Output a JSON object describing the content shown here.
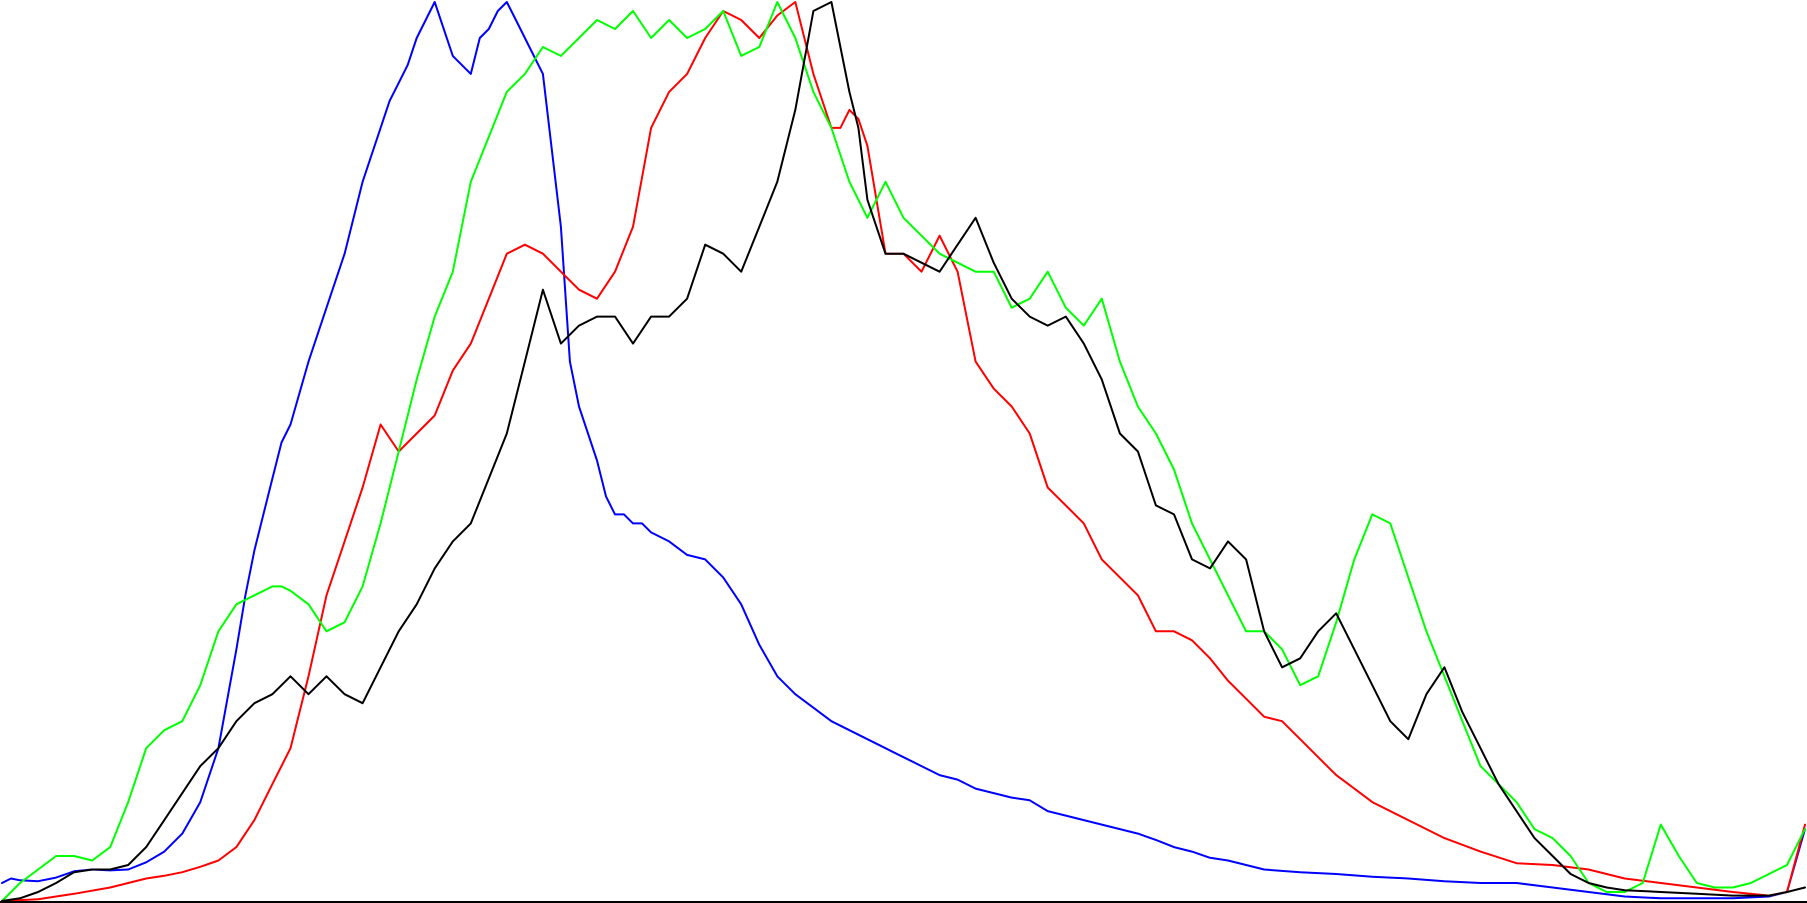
{
  "chart_data": {
    "type": "line",
    "title": "",
    "xlabel": "",
    "ylabel": "",
    "grid": false,
    "legend": "none",
    "xlim": [
      0,
      1
    ],
    "ylim": [
      0,
      1
    ],
    "series": [
      {
        "color": "#0000ff",
        "x": [
          0,
          0.005,
          0.01,
          0.02,
          0.03,
          0.04,
          0.05,
          0.06,
          0.07,
          0.08,
          0.09,
          0.1,
          0.11,
          0.12,
          0.13,
          0.135,
          0.14,
          0.145,
          0.15,
          0.155,
          0.16,
          0.17,
          0.18,
          0.19,
          0.2,
          0.205,
          0.21,
          0.215,
          0.22,
          0.225,
          0.23,
          0.24,
          0.25,
          0.26,
          0.265,
          0.27,
          0.275,
          0.28,
          0.285,
          0.29,
          0.3,
          0.31,
          0.315,
          0.32,
          0.325,
          0.33,
          0.335,
          0.34,
          0.345,
          0.35,
          0.355,
          0.36,
          0.37,
          0.38,
          0.39,
          0.4,
          0.41,
          0.42,
          0.43,
          0.44,
          0.45,
          0.46,
          0.47,
          0.48,
          0.49,
          0.5,
          0.51,
          0.52,
          0.53,
          0.54,
          0.55,
          0.56,
          0.57,
          0.58,
          0.59,
          0.6,
          0.61,
          0.62,
          0.63,
          0.64,
          0.65,
          0.66,
          0.67,
          0.68,
          0.69,
          0.7,
          0.72,
          0.74,
          0.76,
          0.78,
          0.8,
          0.82,
          0.84,
          0.86,
          0.88,
          0.9,
          0.92,
          0.94,
          0.96,
          0.98,
          0.99,
          1
        ],
        "y": [
          0.02,
          0.025,
          0.023,
          0.022,
          0.026,
          0.033,
          0.035,
          0.034,
          0.035,
          0.043,
          0.055,
          0.075,
          0.11,
          0.17,
          0.28,
          0.34,
          0.39,
          0.43,
          0.47,
          0.51,
          0.53,
          0.6,
          0.66,
          0.72,
          0.8,
          0.83,
          0.86,
          0.89,
          0.91,
          0.93,
          0.96,
          1.0,
          0.94,
          0.92,
          0.96,
          0.97,
          0.99,
          1.0,
          0.98,
          0.96,
          0.92,
          0.75,
          0.6,
          0.55,
          0.52,
          0.49,
          0.45,
          0.43,
          0.43,
          0.42,
          0.42,
          0.41,
          0.4,
          0.385,
          0.38,
          0.36,
          0.33,
          0.285,
          0.25,
          0.23,
          0.215,
          0.2,
          0.19,
          0.18,
          0.17,
          0.16,
          0.15,
          0.14,
          0.135,
          0.125,
          0.12,
          0.115,
          0.112,
          0.1,
          0.095,
          0.09,
          0.085,
          0.08,
          0.075,
          0.068,
          0.06,
          0.055,
          0.048,
          0.045,
          0.04,
          0.035,
          0.032,
          0.03,
          0.027,
          0.025,
          0.022,
          0.02,
          0.02,
          0.015,
          0.01,
          0.005,
          0.003,
          0.003,
          0.003,
          0.005,
          0.01,
          0.08
        ]
      },
      {
        "color": "#ff0000",
        "x": [
          0,
          0.02,
          0.04,
          0.06,
          0.08,
          0.09,
          0.1,
          0.11,
          0.12,
          0.13,
          0.14,
          0.15,
          0.16,
          0.17,
          0.18,
          0.19,
          0.2,
          0.21,
          0.22,
          0.23,
          0.24,
          0.25,
          0.26,
          0.27,
          0.28,
          0.29,
          0.3,
          0.31,
          0.32,
          0.33,
          0.34,
          0.35,
          0.36,
          0.37,
          0.38,
          0.39,
          0.4,
          0.41,
          0.42,
          0.43,
          0.44,
          0.45,
          0.46,
          0.465,
          0.47,
          0.475,
          0.48,
          0.49,
          0.5,
          0.51,
          0.52,
          0.53,
          0.54,
          0.55,
          0.56,
          0.57,
          0.58,
          0.59,
          0.6,
          0.61,
          0.62,
          0.63,
          0.64,
          0.65,
          0.66,
          0.67,
          0.68,
          0.69,
          0.7,
          0.71,
          0.72,
          0.73,
          0.74,
          0.75,
          0.76,
          0.78,
          0.8,
          0.82,
          0.84,
          0.86,
          0.88,
          0.9,
          0.92,
          0.94,
          0.96,
          0.98,
          0.99,
          1
        ],
        "y": [
          0.0,
          0.002,
          0.008,
          0.015,
          0.025,
          0.028,
          0.032,
          0.038,
          0.045,
          0.06,
          0.09,
          0.13,
          0.17,
          0.25,
          0.34,
          0.4,
          0.46,
          0.53,
          0.5,
          0.52,
          0.54,
          0.59,
          0.62,
          0.67,
          0.72,
          0.73,
          0.72,
          0.7,
          0.68,
          0.67,
          0.7,
          0.75,
          0.86,
          0.9,
          0.92,
          0.96,
          0.99,
          0.98,
          0.96,
          0.985,
          1.0,
          0.92,
          0.86,
          0.86,
          0.88,
          0.87,
          0.84,
          0.72,
          0.72,
          0.7,
          0.74,
          0.7,
          0.6,
          0.57,
          0.55,
          0.52,
          0.46,
          0.44,
          0.42,
          0.38,
          0.36,
          0.34,
          0.3,
          0.3,
          0.29,
          0.27,
          0.245,
          0.225,
          0.205,
          0.2,
          0.18,
          0.16,
          0.14,
          0.125,
          0.11,
          0.09,
          0.07,
          0.055,
          0.042,
          0.04,
          0.035,
          0.025,
          0.02,
          0.015,
          0.01,
          0.006,
          0.01,
          0.085
        ]
      },
      {
        "color": "#00ff00",
        "x": [
          0,
          0.01,
          0.02,
          0.03,
          0.04,
          0.05,
          0.06,
          0.07,
          0.08,
          0.09,
          0.1,
          0.11,
          0.12,
          0.13,
          0.14,
          0.15,
          0.155,
          0.16,
          0.17,
          0.18,
          0.19,
          0.2,
          0.21,
          0.22,
          0.23,
          0.24,
          0.25,
          0.26,
          0.27,
          0.28,
          0.29,
          0.3,
          0.31,
          0.32,
          0.33,
          0.34,
          0.35,
          0.36,
          0.37,
          0.38,
          0.39,
          0.4,
          0.41,
          0.42,
          0.43,
          0.44,
          0.45,
          0.46,
          0.47,
          0.48,
          0.49,
          0.5,
          0.51,
          0.52,
          0.53,
          0.54,
          0.55,
          0.56,
          0.57,
          0.58,
          0.59,
          0.6,
          0.61,
          0.62,
          0.63,
          0.64,
          0.65,
          0.66,
          0.67,
          0.68,
          0.69,
          0.7,
          0.71,
          0.72,
          0.73,
          0.74,
          0.75,
          0.76,
          0.77,
          0.78,
          0.79,
          0.8,
          0.81,
          0.82,
          0.83,
          0.84,
          0.85,
          0.86,
          0.87,
          0.88,
          0.89,
          0.9,
          0.91,
          0.92,
          0.93,
          0.94,
          0.95,
          0.96,
          0.97,
          0.98,
          0.99,
          1
        ],
        "y": [
          0.0,
          0.02,
          0.035,
          0.05,
          0.05,
          0.045,
          0.06,
          0.11,
          0.17,
          0.19,
          0.2,
          0.24,
          0.3,
          0.33,
          0.34,
          0.35,
          0.35,
          0.345,
          0.33,
          0.3,
          0.31,
          0.35,
          0.42,
          0.5,
          0.58,
          0.65,
          0.7,
          0.8,
          0.85,
          0.9,
          0.92,
          0.95,
          0.94,
          0.96,
          0.98,
          0.97,
          0.99,
          0.96,
          0.98,
          0.96,
          0.97,
          0.99,
          0.94,
          0.95,
          1.0,
          0.96,
          0.9,
          0.86,
          0.8,
          0.76,
          0.8,
          0.76,
          0.74,
          0.72,
          0.71,
          0.7,
          0.7,
          0.66,
          0.67,
          0.7,
          0.66,
          0.64,
          0.67,
          0.6,
          0.55,
          0.52,
          0.48,
          0.42,
          0.38,
          0.34,
          0.3,
          0.3,
          0.28,
          0.24,
          0.25,
          0.31,
          0.38,
          0.43,
          0.42,
          0.36,
          0.3,
          0.25,
          0.2,
          0.15,
          0.13,
          0.11,
          0.08,
          0.07,
          0.05,
          0.02,
          0.01,
          0.01,
          0.02,
          0.085,
          0.05,
          0.02,
          0.015,
          0.015,
          0.02,
          0.03,
          0.04,
          0.08
        ]
      },
      {
        "color": "#000000",
        "x": [
          0,
          0.01,
          0.02,
          0.03,
          0.04,
          0.05,
          0.06,
          0.07,
          0.08,
          0.09,
          0.1,
          0.11,
          0.12,
          0.13,
          0.14,
          0.15,
          0.16,
          0.17,
          0.18,
          0.19,
          0.2,
          0.21,
          0.22,
          0.23,
          0.24,
          0.25,
          0.26,
          0.27,
          0.28,
          0.29,
          0.3,
          0.31,
          0.32,
          0.33,
          0.34,
          0.35,
          0.36,
          0.37,
          0.38,
          0.39,
          0.4,
          0.41,
          0.42,
          0.43,
          0.44,
          0.45,
          0.46,
          0.465,
          0.47,
          0.475,
          0.48,
          0.49,
          0.5,
          0.51,
          0.52,
          0.53,
          0.54,
          0.55,
          0.56,
          0.57,
          0.58,
          0.59,
          0.6,
          0.61,
          0.62,
          0.63,
          0.64,
          0.65,
          0.66,
          0.67,
          0.68,
          0.69,
          0.7,
          0.71,
          0.72,
          0.73,
          0.74,
          0.75,
          0.76,
          0.77,
          0.78,
          0.79,
          0.8,
          0.81,
          0.82,
          0.83,
          0.84,
          0.85,
          0.86,
          0.87,
          0.88,
          0.89,
          0.9,
          0.92,
          0.94,
          0.96,
          0.98,
          0.99,
          1
        ],
        "y": [
          0.0,
          0.003,
          0.01,
          0.02,
          0.032,
          0.035,
          0.035,
          0.04,
          0.06,
          0.09,
          0.12,
          0.15,
          0.17,
          0.2,
          0.22,
          0.23,
          0.25,
          0.23,
          0.25,
          0.23,
          0.22,
          0.26,
          0.3,
          0.33,
          0.37,
          0.4,
          0.42,
          0.47,
          0.52,
          0.6,
          0.68,
          0.62,
          0.64,
          0.65,
          0.65,
          0.62,
          0.65,
          0.65,
          0.67,
          0.73,
          0.72,
          0.7,
          0.75,
          0.8,
          0.88,
          0.99,
          1.0,
          0.95,
          0.9,
          0.86,
          0.78,
          0.72,
          0.72,
          0.71,
          0.7,
          0.73,
          0.76,
          0.71,
          0.67,
          0.65,
          0.64,
          0.65,
          0.62,
          0.58,
          0.52,
          0.5,
          0.44,
          0.43,
          0.38,
          0.37,
          0.4,
          0.38,
          0.3,
          0.26,
          0.27,
          0.3,
          0.32,
          0.28,
          0.24,
          0.2,
          0.18,
          0.23,
          0.26,
          0.21,
          0.17,
          0.13,
          0.1,
          0.07,
          0.05,
          0.03,
          0.02,
          0.015,
          0.012,
          0.01,
          0.008,
          0.006,
          0.006,
          0.01,
          0.015
        ]
      }
    ]
  }
}
